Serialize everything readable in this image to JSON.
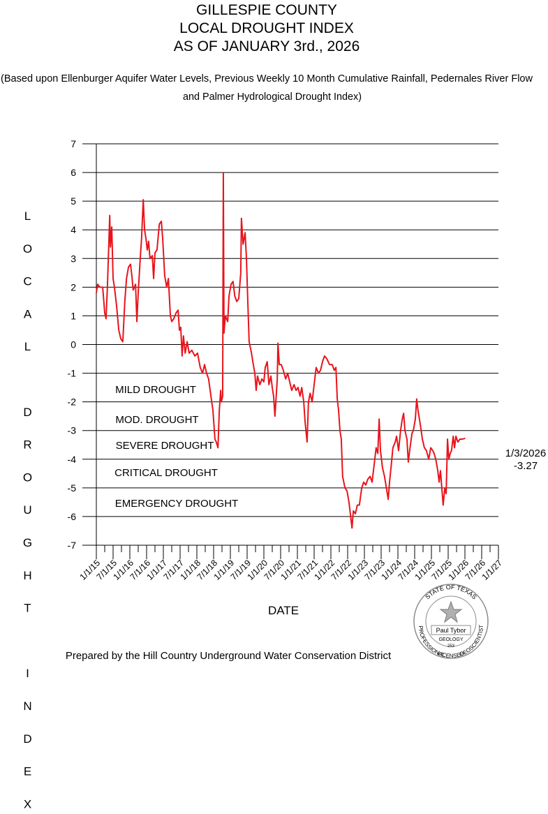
{
  "chart_data": {
    "type": "line",
    "title": [
      "GILLESPIE COUNTY",
      "LOCAL DROUGHT INDEX",
      "AS OF JANUARY 3rd., 2026"
    ],
    "subtitle": [
      "(Based upon Ellenburger Aquifer Water Levels,  Previous Weekly 10 Month Cumulative Rainfall, Pedernales River Flow",
      "and Palmer Hydrological Drought Index)"
    ],
    "y_label": "L O C A L   D R O U G H T   I N D E X",
    "x_label": "DATE",
    "footer": "Prepared by the Hill Country Underground Water Conservation District",
    "zones": [
      "MILD DROUGHT",
      "MOD. DROUGHT",
      "SEVERE DROUGHT",
      "CRITICAL DROUGHT",
      "EMERGENCY DROUGHT"
    ],
    "last_point": {
      "date": "1/3/2026",
      "value": -3.27
    },
    "seal": {
      "top": "STATE OF TEXAS",
      "name": "Paul Tybor",
      "field": "GEOLOGY",
      "number": "253",
      "left": "PROFESSIONAL",
      "bottom": "LICENSED",
      "right": "GEOSCIENTIST"
    },
    "grid": true,
    "xlim": [
      2015,
      2027
    ],
    "ylim": [
      -7,
      7
    ],
    "yticks": [
      -7,
      -6,
      -5,
      -4,
      -3,
      -2,
      -1,
      0,
      1,
      2,
      3,
      4,
      5,
      6,
      7
    ],
    "xticks": [
      {
        "value": 2015,
        "label": "1/1/15"
      },
      {
        "value": 2015.5,
        "label": "7/1/15"
      },
      {
        "value": 2016,
        "label": "1/1/16"
      },
      {
        "value": 2016.5,
        "label": "7/1/16"
      },
      {
        "value": 2017,
        "label": "1/1/17"
      },
      {
        "value": 2017.5,
        "label": "7/1/17"
      },
      {
        "value": 2018,
        "label": "1/1/18"
      },
      {
        "value": 2018.5,
        "label": "7/1/18"
      },
      {
        "value": 2019,
        "label": "1/1/19"
      },
      {
        "value": 2019.5,
        "label": "7/1/19"
      },
      {
        "value": 2020,
        "label": "1/1/20"
      },
      {
        "value": 2020.5,
        "label": "7/1/20"
      },
      {
        "value": 2021,
        "label": "1/1/21"
      },
      {
        "value": 2021.5,
        "label": "7/1/21"
      },
      {
        "value": 2022,
        "label": "1/1/22"
      },
      {
        "value": 2022.5,
        "label": "7/1/22"
      },
      {
        "value": 2023,
        "label": "1/1/23"
      },
      {
        "value": 2023.5,
        "label": "7/1/23"
      },
      {
        "value": 2024,
        "label": "1/1/24"
      },
      {
        "value": 2024.5,
        "label": "7/1/24"
      },
      {
        "value": 2025,
        "label": "1/1/25"
      },
      {
        "value": 2025.5,
        "label": "7/1/25"
      },
      {
        "value": 2026,
        "label": "1/1/26"
      },
      {
        "value": 2026.5,
        "label": "7/1/26"
      },
      {
        "value": 2027,
        "label": "1/1/27"
      }
    ],
    "x": [
      2015.0,
      2015.04,
      2015.1,
      2015.19,
      2015.25,
      2015.29,
      2015.33,
      2015.4,
      2015.42,
      2015.46,
      2015.5,
      2015.54,
      2015.6,
      2015.67,
      2015.73,
      2015.79,
      2015.85,
      2015.9,
      2015.96,
      2016.02,
      2016.06,
      2016.1,
      2016.17,
      2016.21,
      2016.25,
      2016.31,
      2016.35,
      2016.4,
      2016.44,
      2016.48,
      2016.52,
      2016.56,
      2016.6,
      2016.67,
      2016.71,
      2016.75,
      2016.81,
      2016.88,
      2016.94,
      2016.98,
      2017.04,
      2017.1,
      2017.15,
      2017.21,
      2017.25,
      2017.31,
      2017.38,
      2017.44,
      2017.48,
      2017.52,
      2017.56,
      2017.6,
      2017.65,
      2017.71,
      2017.77,
      2017.85,
      2017.94,
      2018.02,
      2018.1,
      2018.17,
      2018.23,
      2018.29,
      2018.35,
      2018.42,
      2018.48,
      2018.54,
      2018.58,
      2018.63,
      2018.67,
      2018.71,
      2018.73,
      2018.77,
      2018.79,
      2018.81,
      2018.85,
      2018.92,
      2018.96,
      2019.02,
      2019.08,
      2019.13,
      2019.19,
      2019.25,
      2019.31,
      2019.33,
      2019.38,
      2019.44,
      2019.48,
      2019.52,
      2019.56,
      2019.63,
      2019.67,
      2019.73,
      2019.77,
      2019.81,
      2019.88,
      2019.94,
      2020.0,
      2020.04,
      2020.1,
      2020.15,
      2020.21,
      2020.25,
      2020.29,
      2020.33,
      2020.4,
      2020.42,
      2020.46,
      2020.52,
      2020.58,
      2020.65,
      2020.71,
      2020.77,
      2020.83,
      2020.9,
      2020.96,
      2021.02,
      2021.08,
      2021.13,
      2021.19,
      2021.23,
      2021.29,
      2021.33,
      2021.38,
      2021.44,
      2021.5,
      2021.56,
      2021.63,
      2021.69,
      2021.75,
      2021.81,
      2021.88,
      2021.96,
      2022.04,
      2022.1,
      2022.15,
      2022.19,
      2022.23,
      2022.27,
      2022.31,
      2022.35,
      2022.42,
      2022.48,
      2022.54,
      2022.58,
      2022.63,
      2022.67,
      2022.73,
      2022.79,
      2022.85,
      2022.92,
      2022.98,
      2023.04,
      2023.1,
      2023.17,
      2023.23,
      2023.29,
      2023.35,
      2023.4,
      2023.44,
      2023.48,
      2023.54,
      2023.6,
      2023.67,
      2023.71,
      2023.75,
      2023.81,
      2023.85,
      2023.92,
      2023.96,
      2024.02,
      2024.08,
      2024.13,
      2024.17,
      2024.21,
      2024.27,
      2024.31,
      2024.35,
      2024.42,
      2024.46,
      2024.52,
      2024.56,
      2024.6,
      2024.67,
      2024.73,
      2024.79,
      2024.85,
      2024.92,
      2024.98,
      2025.04,
      2025.08,
      2025.13,
      2025.19,
      2025.23,
      2025.27,
      2025.31,
      2025.35,
      2025.4,
      2025.44,
      2025.48,
      2025.52,
      2025.56,
      2025.6,
      2025.65,
      2025.69,
      2025.73,
      2025.79,
      2025.85,
      2025.92,
      2026.01
    ],
    "series": [
      {
        "name": "Local Drought Index",
        "color": "#e8141b",
        "values": [
          1.8,
          2.1,
          2.0,
          2.0,
          1.1,
          0.9,
          2.0,
          4.5,
          3.4,
          4.1,
          2.3,
          2.0,
          1.4,
          0.5,
          0.2,
          0.1,
          1.5,
          2.3,
          2.7,
          2.8,
          2.4,
          1.9,
          2.1,
          0.8,
          1.8,
          3.0,
          3.7,
          5.05,
          4.0,
          3.7,
          3.3,
          3.6,
          3.0,
          3.1,
          2.3,
          3.2,
          3.3,
          4.2,
          4.3,
          3.7,
          2.4,
          2.0,
          2.3,
          1.0,
          0.8,
          0.9,
          1.1,
          1.2,
          0.5,
          0.6,
          -0.4,
          0.3,
          -0.3,
          0.1,
          -0.3,
          -0.2,
          -0.4,
          -0.3,
          -0.8,
          -1.0,
          -0.7,
          -1.0,
          -1.2,
          -1.8,
          -2.3,
          -3.3,
          -3.4,
          -3.6,
          -2.3,
          -1.6,
          -2.0,
          -1.8,
          6.0,
          0.4,
          1.0,
          0.8,
          1.7,
          2.1,
          2.2,
          1.7,
          1.5,
          1.6,
          2.5,
          4.4,
          3.5,
          3.9,
          3.0,
          1.5,
          0.1,
          -0.3,
          -0.6,
          -1.0,
          -1.6,
          -1.1,
          -1.4,
          -1.2,
          -1.3,
          -0.8,
          -0.6,
          -1.4,
          -1.1,
          -1.5,
          -1.8,
          -2.5,
          -1.2,
          0.05,
          -0.7,
          -0.7,
          -0.9,
          -1.2,
          -1.0,
          -1.3,
          -1.6,
          -1.4,
          -1.6,
          -1.5,
          -1.8,
          -1.5,
          -2.0,
          -2.7,
          -3.4,
          -2.0,
          -1.7,
          -2.0,
          -1.4,
          -0.8,
          -1.0,
          -0.9,
          -0.6,
          -0.4,
          -0.5,
          -0.7,
          -0.7,
          -0.9,
          -0.8,
          -1.9,
          -2.3,
          -3.0,
          -3.3,
          -4.6,
          -5.0,
          -5.1,
          -5.5,
          -5.9,
          -6.4,
          -5.8,
          -5.9,
          -5.6,
          -5.6,
          -5.0,
          -4.8,
          -4.9,
          -4.7,
          -4.6,
          -4.8,
          -4.2,
          -3.6,
          -3.8,
          -2.6,
          -3.7,
          -4.3,
          -4.6,
          -5.1,
          -5.4,
          -4.8,
          -4.1,
          -3.6,
          -3.4,
          -3.2,
          -3.7,
          -3.0,
          -2.6,
          -2.4,
          -3.0,
          -3.3,
          -4.1,
          -3.7,
          -3.1,
          -3.0,
          -2.6,
          -1.9,
          -2.3,
          -2.8,
          -3.3,
          -3.6,
          -3.7,
          -4.0,
          -3.6,
          -3.7,
          -3.8,
          -4.0,
          -4.4,
          -4.8,
          -4.4,
          -5.0,
          -5.6,
          -5.0,
          -5.2,
          -3.3,
          -4.0,
          -3.8,
          -3.7,
          -3.2,
          -3.6,
          -3.2,
          -3.4,
          -3.3,
          -3.3,
          -3.27
        ]
      }
    ]
  }
}
